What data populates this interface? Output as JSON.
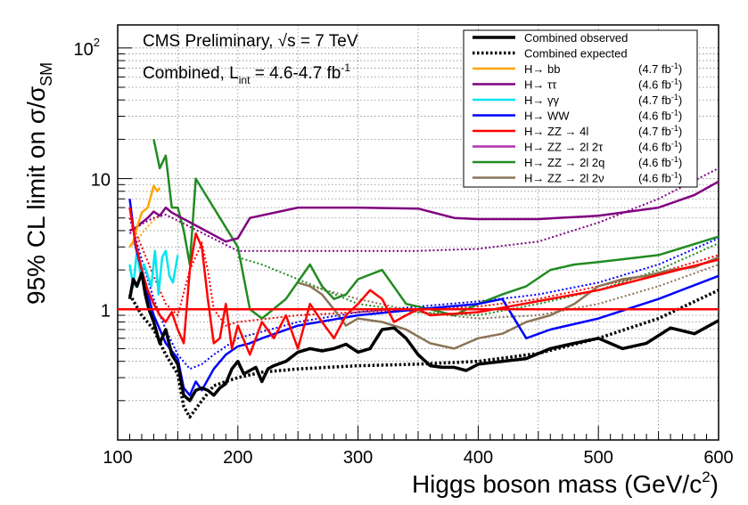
{
  "chart_data": {
    "type": "line",
    "info": {
      "line1": "CMS Preliminary, √s = 7 TeV",
      "line2_prefix": "Combined, L",
      "line2_sub": "int",
      "line2_suffix": " = 4.6-4.7 fb",
      "line2_sup": "-1"
    },
    "xlabel": {
      "text": "Higgs boson mass (GeV/c",
      "sup": "2",
      "end": ")"
    },
    "ylabel": {
      "text": "95% CL limit on σ/σ",
      "sub": "SM"
    },
    "xlim": [
      100,
      600
    ],
    "ylim": [
      0.1,
      150
    ],
    "yscale": "log",
    "x_ticks": [
      "100",
      "200",
      "300",
      "400",
      "500",
      "600"
    ],
    "y_ticks": [
      {
        "value": 1,
        "label": "1"
      },
      {
        "value": 10,
        "label": "10"
      },
      {
        "value": 100,
        "label": "10",
        "sup": "2"
      }
    ],
    "reference_line": {
      "y": 1,
      "color": "#ff0000"
    },
    "grid": true,
    "legend_position": "top-right",
    "series": [
      {
        "key": "obs",
        "name": "Combined observed",
        "lumi": "",
        "color": "#000000",
        "dash": false,
        "width": 3.5,
        "x": [
          110,
          113,
          116,
          120,
          123,
          126,
          130,
          135,
          140,
          145,
          150,
          155,
          160,
          165,
          170,
          175,
          180,
          185,
          190,
          195,
          200,
          205,
          210,
          215,
          220,
          225,
          230,
          240,
          250,
          260,
          270,
          280,
          290,
          300,
          310,
          320,
          330,
          340,
          350,
          360,
          370,
          380,
          390,
          400,
          420,
          440,
          460,
          480,
          500,
          520,
          540,
          560,
          580,
          600
        ],
        "y": [
          1.2,
          1.7,
          1.5,
          1.9,
          1.3,
          1.0,
          0.8,
          0.55,
          0.7,
          0.45,
          0.38,
          0.22,
          0.2,
          0.24,
          0.25,
          0.24,
          0.22,
          0.25,
          0.27,
          0.35,
          0.4,
          0.32,
          0.34,
          0.36,
          0.28,
          0.35,
          0.37,
          0.4,
          0.47,
          0.5,
          0.48,
          0.5,
          0.54,
          0.47,
          0.5,
          0.7,
          0.72,
          0.6,
          0.45,
          0.37,
          0.36,
          0.36,
          0.34,
          0.38,
          0.4,
          0.42,
          0.5,
          0.55,
          0.6,
          0.5,
          0.55,
          0.72,
          0.65,
          0.82
        ]
      },
      {
        "key": "exp",
        "name": "Combined expected",
        "lumi": "",
        "color": "#000000",
        "dash": true,
        "width": 3.5,
        "x": [
          110,
          120,
          130,
          140,
          150,
          155,
          160,
          170,
          180,
          190,
          200,
          220,
          250,
          300,
          350,
          400,
          450,
          500,
          550,
          600
        ],
        "y": [
          1.3,
          0.9,
          0.7,
          0.45,
          0.32,
          0.18,
          0.15,
          0.2,
          0.26,
          0.28,
          0.3,
          0.33,
          0.35,
          0.37,
          0.38,
          0.4,
          0.46,
          0.6,
          0.85,
          1.4
        ]
      },
      {
        "key": "hbb",
        "name": "H→ bb",
        "lumi": "(4.7 fb",
        "lumi_sup": "-1",
        "color": "#ffa500",
        "dash": false,
        "width": 2.5,
        "x": [
          110,
          113,
          117,
          120,
          125,
          130,
          133,
          135
        ],
        "y": [
          3.0,
          3.3,
          4.5,
          5.5,
          6.0,
          8.8,
          8.0,
          8.5
        ]
      },
      {
        "key": "htautau",
        "name": "H→ ττ",
        "lumi": "(4.6 fb",
        "lumi_sup": "-1",
        "color": "#800080",
        "dash": false,
        "width": 2.5,
        "x": [
          110,
          115,
          120,
          125,
          130,
          135,
          140,
          145,
          190,
          200,
          210,
          250,
          300,
          350,
          380,
          400,
          450,
          500,
          550,
          580,
          600
        ],
        "y": [
          4.0,
          4.2,
          4.6,
          5.0,
          5.6,
          5.2,
          6.0,
          5.5,
          3.3,
          3.5,
          5.0,
          6.0,
          6.0,
          5.9,
          5.0,
          4.9,
          4.9,
          5.2,
          6.0,
          7.5,
          9.5
        ]
      },
      {
        "key": "hgg",
        "name": "H→ γγ",
        "lumi": "(4.7 fb",
        "lumi_sup": "-1",
        "color": "#00e5ee",
        "dash": false,
        "width": 2.5,
        "x": [
          110,
          113,
          116,
          119,
          122,
          125,
          128,
          131,
          134,
          137,
          140,
          143,
          146,
          150
        ],
        "y": [
          2.2,
          1.5,
          2.8,
          1.8,
          2.2,
          1.8,
          1.5,
          2.8,
          1.3,
          2.5,
          2.8,
          1.8,
          1.6,
          2.6
        ]
      },
      {
        "key": "hww",
        "name": "H→ WW",
        "lumi": "(4.6 fb",
        "lumi_sup": "-1",
        "color": "#0000ff",
        "dash": false,
        "width": 2.5,
        "x": [
          110,
          115,
          120,
          125,
          130,
          140,
          150,
          155,
          160,
          165,
          170,
          180,
          190,
          200,
          210,
          220,
          250,
          300,
          350,
          400,
          420,
          440,
          460,
          500,
          550,
          600
        ],
        "y": [
          7.0,
          3.0,
          2.0,
          1.3,
          0.9,
          0.55,
          0.42,
          0.25,
          0.22,
          0.28,
          0.24,
          0.35,
          0.45,
          0.52,
          0.55,
          0.6,
          0.75,
          0.9,
          1.0,
          1.1,
          1.2,
          0.6,
          0.7,
          0.85,
          1.2,
          1.8
        ]
      },
      {
        "key": "h4l",
        "name": "H→ ZZ → 4l",
        "lumi": "(4.7 fb",
        "lumi_sup": "-1",
        "color": "#ff0000",
        "dash": false,
        "width": 2.5,
        "x": [
          110,
          115,
          120,
          125,
          130,
          135,
          140,
          145,
          150,
          155,
          160,
          165,
          170,
          175,
          180,
          185,
          190,
          195,
          200,
          210,
          220,
          230,
          240,
          250,
          260,
          270,
          280,
          290,
          300,
          310,
          320,
          330,
          340,
          350,
          360,
          400,
          500,
          600
        ],
        "y": [
          6.0,
          3.2,
          2.0,
          1.4,
          1.1,
          0.9,
          0.8,
          0.95,
          0.7,
          0.55,
          2.0,
          3.8,
          3.0,
          1.2,
          0.55,
          0.6,
          1.1,
          0.5,
          0.75,
          0.45,
          0.8,
          0.6,
          0.9,
          0.5,
          1.1,
          0.8,
          0.6,
          0.9,
          1.1,
          1.4,
          1.2,
          0.8,
          0.9,
          1.0,
          0.9,
          0.95,
          1.4,
          2.4
        ]
      },
      {
        "key": "h2l2tau",
        "name": "H→ ZZ → 2l 2τ",
        "lumi": "(4.6 fb",
        "lumi_sup": "-1",
        "color": "#b030b0",
        "dash": false,
        "width": 2.5,
        "x": [],
        "y": []
      },
      {
        "key": "h2l2q",
        "name": "H→ ZZ → 2l 2q",
        "lumi": "(4.6 fb",
        "lumi_sup": "-1",
        "color": "#228b22",
        "dash": false,
        "width": 2.5,
        "x": [
          130,
          135,
          140,
          145,
          150,
          155,
          160,
          165,
          200,
          210,
          220,
          240,
          260,
          270,
          280,
          290,
          300,
          320,
          340,
          360,
          380,
          400,
          420,
          440,
          460,
          480,
          500,
          550,
          600
        ],
        "y": [
          20,
          12,
          15,
          6,
          6,
          4,
          2.2,
          10,
          3.0,
          1.0,
          0.85,
          1.2,
          2.2,
          1.5,
          1.2,
          1.3,
          1.7,
          2.0,
          1.1,
          1.0,
          0.9,
          1.1,
          1.3,
          1.5,
          2.0,
          2.2,
          2.3,
          2.6,
          3.6
        ]
      },
      {
        "key": "h2l2nu",
        "name": "H→ ZZ → 2l 2ν",
        "lumi": "(4.6 fb",
        "lumi_sup": "-1",
        "color": "#8b7355",
        "dash": false,
        "width": 2.5,
        "x": [
          250,
          260,
          270,
          280,
          290,
          300,
          320,
          340,
          360,
          380,
          400,
          420,
          440,
          460,
          480,
          500,
          520,
          540,
          560,
          580,
          600
        ],
        "y": [
          1.6,
          1.5,
          1.3,
          1.0,
          0.75,
          0.85,
          0.8,
          0.7,
          0.55,
          0.5,
          0.6,
          0.65,
          0.8,
          0.9,
          1.1,
          1.5,
          1.7,
          1.8,
          2.0,
          2.1,
          2.5
        ]
      }
    ],
    "expected_curves": [
      {
        "color": "#ffa500",
        "x": [
          110,
          115,
          120,
          125,
          130,
          135
        ],
        "y": [
          3.0,
          3.2,
          3.8,
          4.3,
          4.8,
          5.3
        ]
      },
      {
        "color": "#800080",
        "x": [
          110,
          120,
          130,
          140,
          200,
          250,
          300,
          350,
          400,
          450,
          500,
          550,
          600
        ],
        "y": [
          3.8,
          4.5,
          5.0,
          5.3,
          2.8,
          2.8,
          2.8,
          2.8,
          2.9,
          3.3,
          4.6,
          7.0,
          12.0
        ]
      },
      {
        "color": "#0000ff",
        "x": [
          110,
          120,
          130,
          140,
          150,
          160,
          170,
          180,
          200,
          250,
          300,
          350,
          400,
          450,
          500,
          550,
          600
        ],
        "y": [
          5.0,
          2.4,
          1.2,
          0.7,
          0.45,
          0.35,
          0.38,
          0.45,
          0.6,
          0.8,
          0.95,
          1.05,
          1.15,
          1.3,
          1.6,
          2.2,
          3.5
        ]
      },
      {
        "color": "#ff0000",
        "x": [
          110,
          120,
          130,
          140,
          150,
          160,
          170,
          175,
          180,
          190,
          200,
          250,
          300,
          350,
          400,
          450,
          500,
          550,
          600
        ],
        "y": [
          5.0,
          3.0,
          1.8,
          1.1,
          0.9,
          2.0,
          3.2,
          2.0,
          1.0,
          0.75,
          0.8,
          0.9,
          0.95,
          1.0,
          1.05,
          1.2,
          1.5,
          1.9,
          2.6
        ]
      },
      {
        "color": "#228b22",
        "x": [
          200,
          220,
          250,
          300,
          350,
          400,
          450,
          500,
          550,
          600
        ],
        "y": [
          2.5,
          2.2,
          1.7,
          1.1,
          0.95,
          0.9,
          1.1,
          1.4,
          2.0,
          3.2
        ]
      },
      {
        "color": "#8b7355",
        "x": [
          250,
          300,
          350,
          400,
          450,
          500,
          550,
          600
        ],
        "y": [
          1.6,
          1.2,
          0.95,
          0.85,
          0.9,
          1.1,
          1.5,
          2.2
        ]
      }
    ]
  }
}
